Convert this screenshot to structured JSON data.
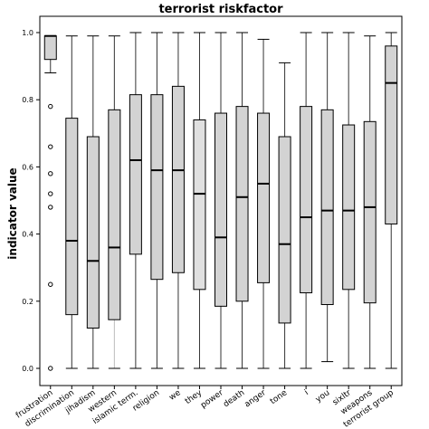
{
  "chart_data": {
    "type": "box",
    "title": "terrorist riskfactor",
    "xlabel": "",
    "ylabel": "indicator value",
    "ylim": [
      -0.05,
      1.05
    ],
    "yticks": [
      "0.0",
      "0.2",
      "0.4",
      "0.6",
      "0.8",
      "1.0"
    ],
    "grid": false,
    "categories": [
      "frustration",
      "discrimination",
      "jihadism",
      "western",
      "islamic term.",
      "religion",
      "we",
      "they",
      "power",
      "death",
      "anger",
      "tone",
      "i",
      "you",
      "sixltr",
      "weapons",
      "terrorist group"
    ],
    "boxes": [
      {
        "whisker_low": 0.88,
        "q1": 0.92,
        "median": 0.99,
        "q3": 0.99,
        "whisker_high": 0.99,
        "outliers": [
          0.78,
          0.66,
          0.58,
          0.52,
          0.48,
          0.25,
          0.0
        ],
        "fill": "#d3d3d3"
      },
      {
        "whisker_low": 0.0,
        "q1": 0.16,
        "median": 0.38,
        "q3": 0.745,
        "whisker_high": 0.99,
        "outliers": [],
        "fill": "#d3d3d3"
      },
      {
        "whisker_low": 0.0,
        "q1": 0.12,
        "median": 0.32,
        "q3": 0.69,
        "whisker_high": 0.99,
        "outliers": [],
        "fill": "#d3d3d3"
      },
      {
        "whisker_low": 0.0,
        "q1": 0.145,
        "median": 0.36,
        "q3": 0.77,
        "whisker_high": 0.99,
        "outliers": [],
        "fill": "#d3d3d3"
      },
      {
        "whisker_low": 0.0,
        "q1": 0.34,
        "median": 0.62,
        "q3": 0.815,
        "whisker_high": 1.0,
        "outliers": [],
        "fill": "#d3d3d3"
      },
      {
        "whisker_low": 0.0,
        "q1": 0.265,
        "median": 0.59,
        "q3": 0.815,
        "whisker_high": 1.0,
        "outliers": [],
        "fill": "#d3d3d3"
      },
      {
        "whisker_low": 0.0,
        "q1": 0.285,
        "median": 0.59,
        "q3": 0.84,
        "whisker_high": 1.0,
        "outliers": [],
        "fill": "#d3d3d3"
      },
      {
        "whisker_low": 0.0,
        "q1": 0.235,
        "median": 0.52,
        "q3": 0.74,
        "whisker_high": 1.0,
        "outliers": [],
        "fill": "#e0e0e0"
      },
      {
        "whisker_low": 0.0,
        "q1": 0.185,
        "median": 0.39,
        "q3": 0.76,
        "whisker_high": 1.0,
        "outliers": [],
        "fill": "#d3d3d3"
      },
      {
        "whisker_low": 0.0,
        "q1": 0.2,
        "median": 0.51,
        "q3": 0.78,
        "whisker_high": 1.0,
        "outliers": [],
        "fill": "#d3d3d3"
      },
      {
        "whisker_low": 0.0,
        "q1": 0.255,
        "median": 0.55,
        "q3": 0.76,
        "whisker_high": 0.98,
        "outliers": [],
        "fill": "#d3d3d3"
      },
      {
        "whisker_low": 0.0,
        "q1": 0.135,
        "median": 0.37,
        "q3": 0.69,
        "whisker_high": 0.91,
        "outliers": [],
        "fill": "#d3d3d3"
      },
      {
        "whisker_low": 0.0,
        "q1": 0.225,
        "median": 0.45,
        "q3": 0.78,
        "whisker_high": 1.0,
        "outliers": [],
        "fill": "#d3d3d3"
      },
      {
        "whisker_low": 0.02,
        "q1": 0.19,
        "median": 0.47,
        "q3": 0.77,
        "whisker_high": 1.0,
        "outliers": [],
        "fill": "#d3d3d3"
      },
      {
        "whisker_low": 0.0,
        "q1": 0.235,
        "median": 0.47,
        "q3": 0.725,
        "whisker_high": 1.0,
        "outliers": [],
        "fill": "#d3d3d3"
      },
      {
        "whisker_low": 0.0,
        "q1": 0.195,
        "median": 0.48,
        "q3": 0.735,
        "whisker_high": 0.99,
        "outliers": [],
        "fill": "#d3d3d3"
      },
      {
        "whisker_low": 0.0,
        "q1": 0.43,
        "median": 0.85,
        "q3": 0.96,
        "whisker_high": 1.0,
        "outliers": [],
        "fill": "#d3d3d3"
      }
    ]
  }
}
